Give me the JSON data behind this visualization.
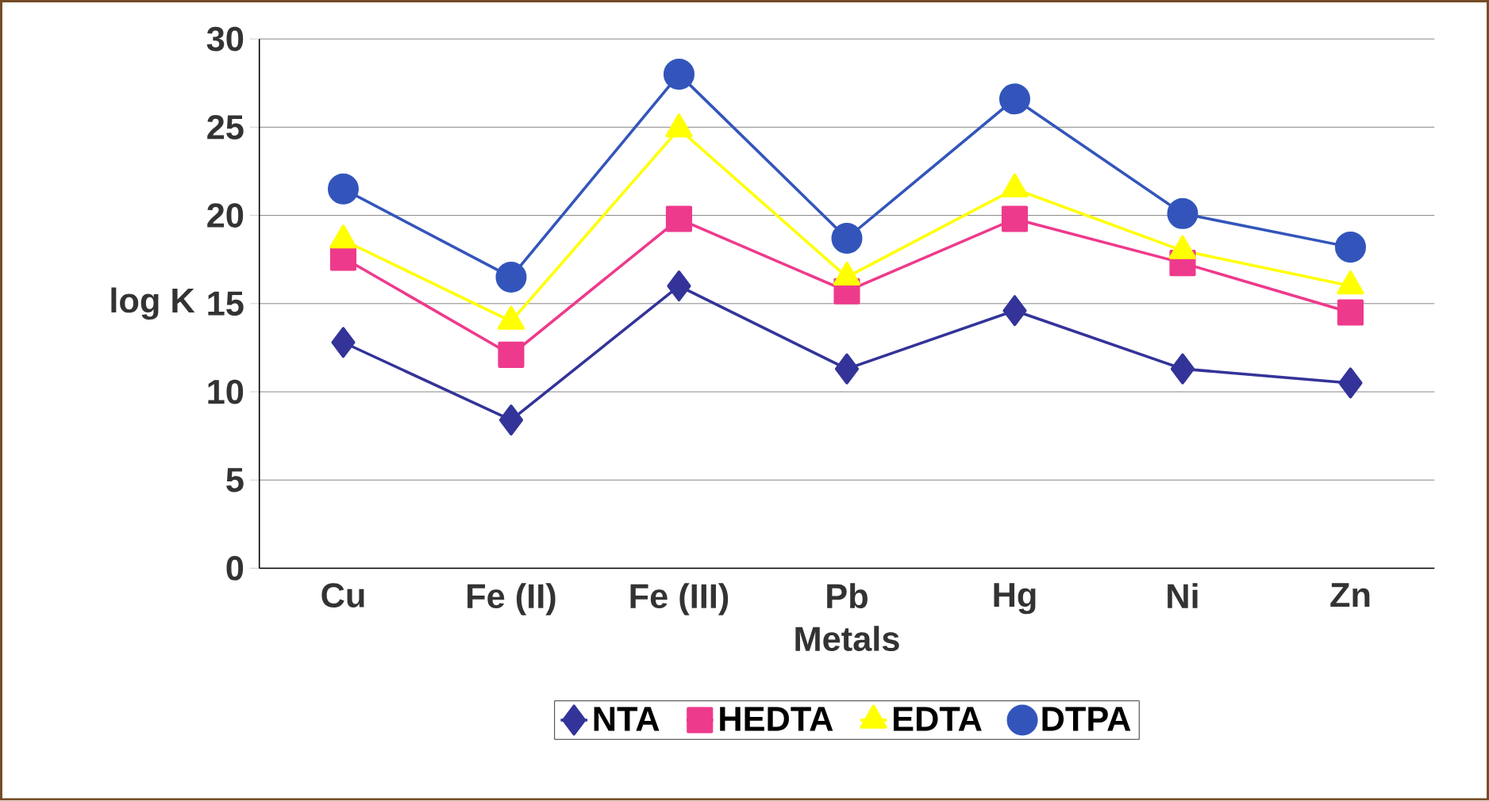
{
  "chart_data": {
    "type": "line",
    "xlabel": "Metals",
    "ylabel": "log K",
    "categories": [
      "Cu",
      "Fe (II)",
      "Fe (III)",
      "Pb",
      "Hg",
      "Ni",
      "Zn"
    ],
    "series": [
      {
        "name": "NTA",
        "color": "#333399",
        "marker": "diamond",
        "values": [
          12.8,
          8.4,
          16.0,
          11.3,
          14.6,
          11.3,
          10.5
        ]
      },
      {
        "name": "HEDTA",
        "color": "#ee3a8c",
        "marker": "square",
        "values": [
          17.6,
          12.1,
          19.8,
          15.7,
          19.8,
          17.3,
          14.5
        ]
      },
      {
        "name": "EDTA",
        "color": "#ffff00",
        "marker": "triangle",
        "values": [
          18.6,
          14.0,
          24.9,
          16.5,
          21.5,
          18.0,
          16.0
        ]
      },
      {
        "name": "DTPA",
        "color": "#3355bb",
        "marker": "circle",
        "values": [
          21.5,
          16.5,
          28.0,
          18.7,
          26.6,
          20.1,
          18.2
        ]
      }
    ],
    "ylim": [
      0,
      30
    ],
    "yticks": [
      0,
      5,
      10,
      15,
      20,
      25,
      30
    ],
    "grid": "y",
    "legend": "bottom"
  }
}
